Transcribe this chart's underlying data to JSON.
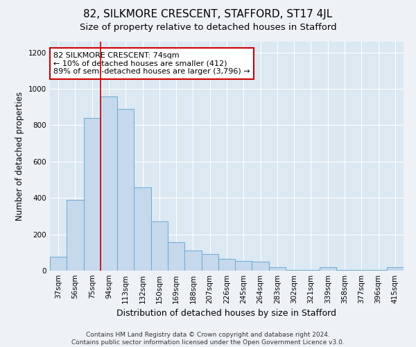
{
  "title": "82, SILKMORE CRESCENT, STAFFORD, ST17 4JL",
  "subtitle": "Size of property relative to detached houses in Stafford",
  "xlabel": "Distribution of detached houses by size in Stafford",
  "ylabel": "Number of detached properties",
  "categories": [
    "37sqm",
    "56sqm",
    "75sqm",
    "94sqm",
    "113sqm",
    "132sqm",
    "150sqm",
    "169sqm",
    "188sqm",
    "207sqm",
    "226sqm",
    "245sqm",
    "264sqm",
    "283sqm",
    "302sqm",
    "321sqm",
    "339sqm",
    "358sqm",
    "377sqm",
    "396sqm",
    "415sqm"
  ],
  "values": [
    75,
    390,
    840,
    960,
    890,
    460,
    270,
    155,
    110,
    90,
    65,
    55,
    50,
    20,
    5,
    5,
    20,
    5,
    5,
    5,
    20
  ],
  "bar_color": "#c5d8ec",
  "bar_edge_color": "#6aaad4",
  "vline_pos": 2.5,
  "vline_color": "#cc0000",
  "annotation_text": "82 SILKMORE CRESCENT: 74sqm\n← 10% of detached houses are smaller (412)\n89% of semi-detached houses are larger (3,796) →",
  "annotation_box_color": "#ffffff",
  "annotation_box_edge_color": "#cc0000",
  "ylim": [
    0,
    1260
  ],
  "yticks": [
    0,
    200,
    400,
    600,
    800,
    1000,
    1200
  ],
  "footnote": "Contains HM Land Registry data © Crown copyright and database right 2024.\nContains public sector information licensed under the Open Government Licence v3.0.",
  "bg_color": "#eef2f7",
  "plot_bg_color": "#dce8f2",
  "title_fontsize": 11,
  "subtitle_fontsize": 9.5,
  "xlabel_fontsize": 9,
  "ylabel_fontsize": 8.5,
  "tick_fontsize": 7.5,
  "annotation_fontsize": 8,
  "footnote_fontsize": 6.5
}
